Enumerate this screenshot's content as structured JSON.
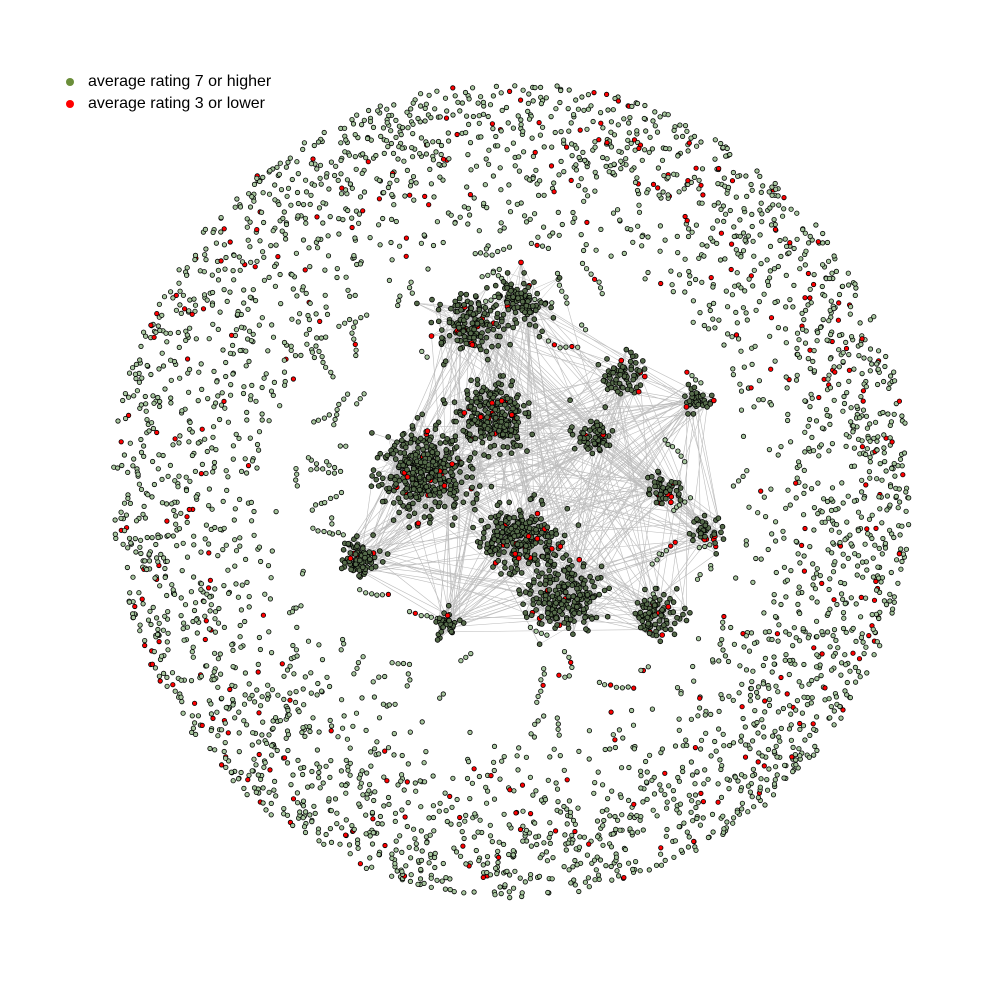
{
  "legend": {
    "items": [
      {
        "label": "average rating 7 or higher",
        "color": "#6b8e3a"
      },
      {
        "label": "average rating 3 or lower",
        "color": "#ff0000"
      }
    ]
  },
  "colors": {
    "node_fill": "#a9c8a0",
    "node_stroke": "#000000",
    "edge": "#bdbdbd",
    "high_rating": "#6b8e3a",
    "low_rating": "#ff0000"
  }
}
